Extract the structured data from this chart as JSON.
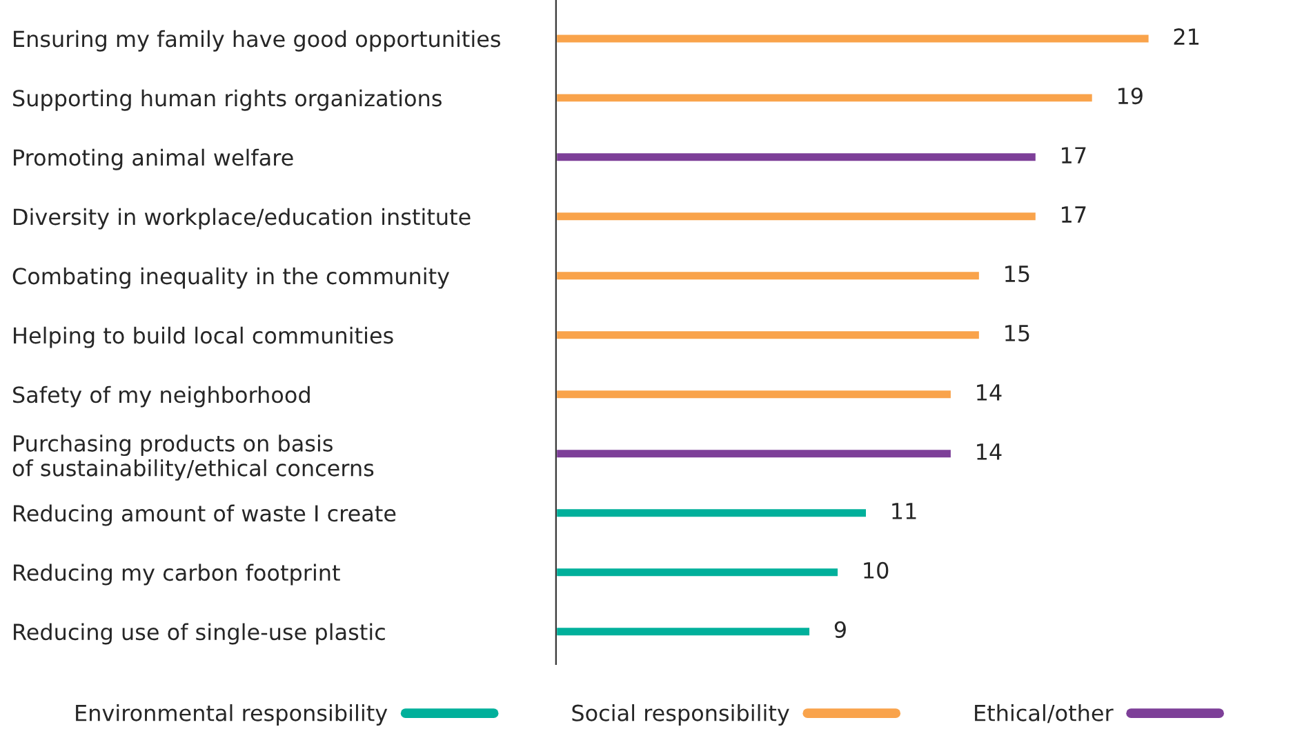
{
  "chart_data": {
    "type": "bar",
    "orientation": "horizontal",
    "data_labels": true,
    "legend": "bottom",
    "grid": false,
    "categories": [
      "Ensuring my family have good opportunities",
      "Supporting human rights organizations",
      "Promoting animal welfare",
      "Diversity in workplace/education institute",
      "Combating inequality in the community",
      "Helping to build local communities",
      "Safety of my neighborhood",
      "Purchasing products on basis\nof sustainability/ethical concerns",
      "Reducing amount of waste I create",
      "Reducing my carbon footprint",
      "Reducing use of single-use plastic"
    ],
    "series": [
      {
        "name": "Environmental responsibility",
        "color": "#00b09b",
        "values": [
          null,
          null,
          null,
          null,
          null,
          null,
          null,
          null,
          11,
          10,
          9
        ]
      },
      {
        "name": "Social responsibility",
        "color": "#f9a34b",
        "values": [
          21,
          19,
          null,
          17,
          15,
          15,
          14,
          null,
          null,
          null,
          null
        ]
      },
      {
        "name": "Ethical/other",
        "color": "#7d3f98",
        "values": [
          null,
          null,
          17,
          null,
          null,
          null,
          null,
          14,
          null,
          null,
          null
        ]
      }
    ]
  }
}
